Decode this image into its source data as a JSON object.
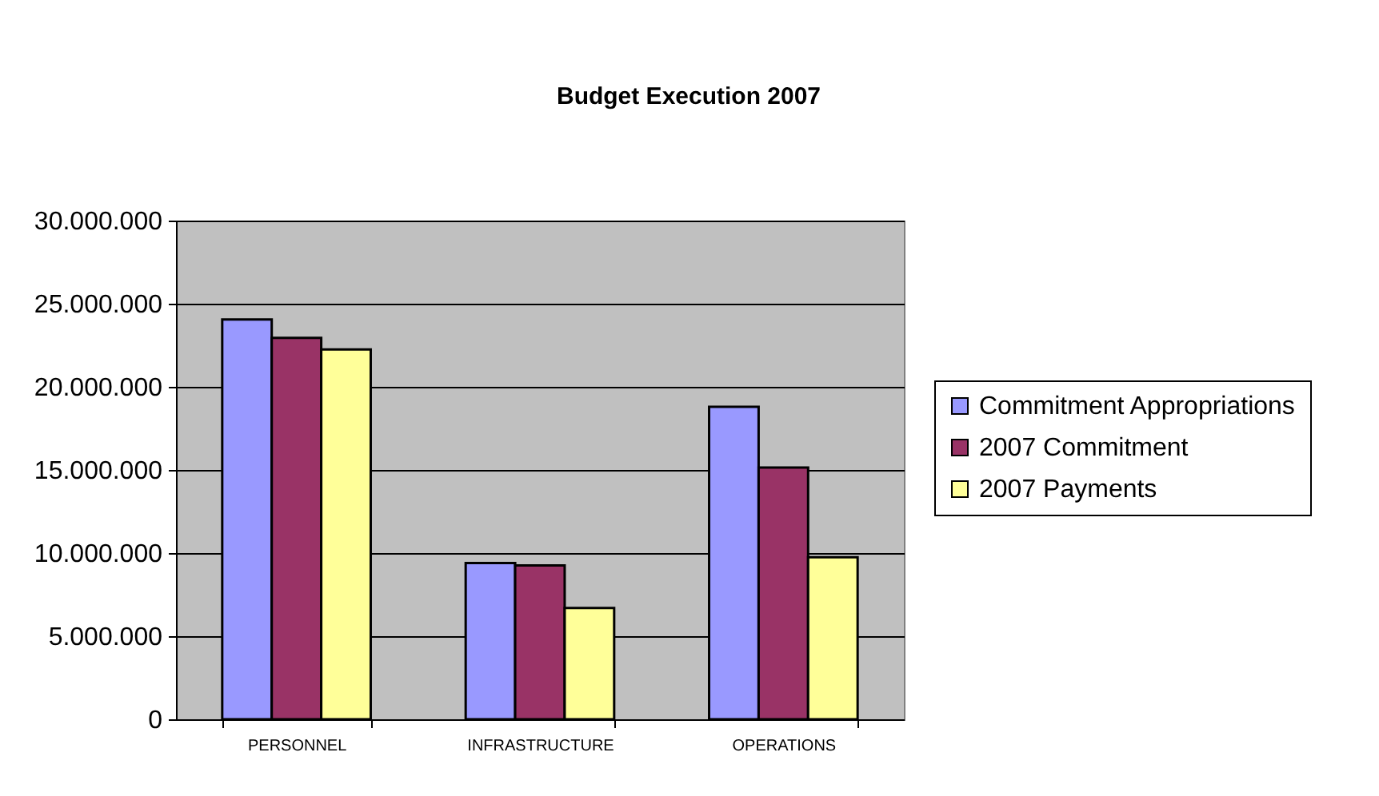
{
  "chart_data": {
    "type": "bar",
    "title": "Budget Execution 2007",
    "categories": [
      "PERSONNEL",
      "INFRASTRUCTURE",
      "OPERATIONS"
    ],
    "series": [
      {
        "name": "Commitment Appropriations",
        "color": "#9999ff",
        "values": [
          24050000,
          9400000,
          18800000
        ]
      },
      {
        "name": "2007 Commitment",
        "color": "#993366",
        "values": [
          22950000,
          9250000,
          15150000
        ]
      },
      {
        "name": "2007 Payments",
        "color": "#ffff99",
        "values": [
          22250000,
          6700000,
          9750000
        ]
      }
    ],
    "ylim": [
      0,
      30000000
    ],
    "yticks": [
      {
        "value": 0,
        "label": "0"
      },
      {
        "value": 5000000,
        "label": "5.000.000"
      },
      {
        "value": 10000000,
        "label": "10.000.000"
      },
      {
        "value": 15000000,
        "label": "15.000.000"
      },
      {
        "value": 20000000,
        "label": "20.000.000"
      },
      {
        "value": 25000000,
        "label": "25.000.000"
      },
      {
        "value": 30000000,
        "label": "30.000.000"
      }
    ],
    "grid": "y",
    "legend": "right"
  }
}
